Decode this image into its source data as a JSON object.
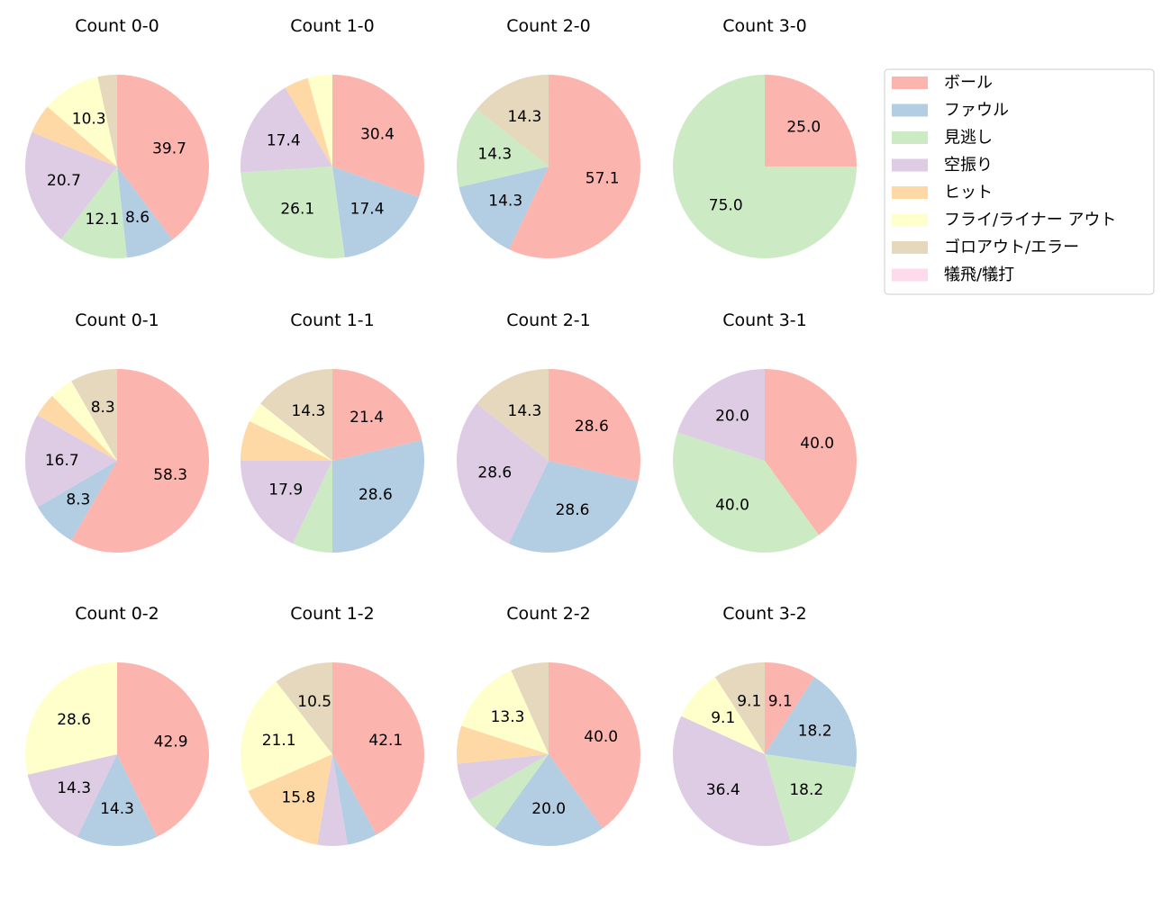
{
  "chart_data": {
    "type": "pie",
    "categories": [
      "ボール",
      "ファウル",
      "見逃し",
      "空振り",
      "ヒット",
      "フライ/ライナー アウト",
      "ゴロアウト/エラー",
      "犠飛/犠打"
    ],
    "colors": [
      "#fbb4ae",
      "#b3cde3",
      "#ccebc5",
      "#decbe4",
      "#fed9a6",
      "#ffffcc",
      "#e5d8bd",
      "#fddaec"
    ],
    "legend_position": "right",
    "start": "top, clockwise",
    "pies": [
      {
        "title": "Count 0-0",
        "values": [
          39.7,
          8.6,
          12.1,
          20.7,
          5.2,
          10.3,
          3.4,
          0
        ]
      },
      {
        "title": "Count 1-0",
        "values": [
          30.4,
          17.4,
          26.1,
          17.4,
          4.3,
          4.3,
          0,
          0
        ]
      },
      {
        "title": "Count 2-0",
        "values": [
          57.1,
          14.3,
          14.3,
          0,
          0,
          0,
          14.3,
          0
        ]
      },
      {
        "title": "Count 3-0",
        "values": [
          25.0,
          0,
          75.0,
          0,
          0,
          0,
          0,
          0
        ]
      },
      {
        "title": "Count 0-1",
        "values": [
          58.3,
          8.3,
          0,
          16.7,
          4.2,
          4.2,
          8.3,
          0
        ]
      },
      {
        "title": "Count 1-1",
        "values": [
          21.4,
          28.6,
          7.1,
          17.9,
          7.1,
          3.6,
          14.3,
          0
        ]
      },
      {
        "title": "Count 2-1",
        "values": [
          28.6,
          28.6,
          0,
          28.6,
          0,
          0,
          14.3,
          0
        ]
      },
      {
        "title": "Count 3-1",
        "values": [
          40.0,
          0,
          40.0,
          20.0,
          0,
          0,
          0,
          0
        ]
      },
      {
        "title": "Count 0-2",
        "values": [
          42.9,
          14.3,
          0,
          14.3,
          0,
          28.6,
          0,
          0
        ]
      },
      {
        "title": "Count 1-2",
        "values": [
          42.1,
          5.3,
          0,
          5.3,
          15.8,
          21.1,
          10.5,
          0
        ]
      },
      {
        "title": "Count 2-2",
        "values": [
          40.0,
          20.0,
          6.7,
          6.7,
          6.7,
          13.3,
          6.7,
          0
        ]
      },
      {
        "title": "Count 3-2",
        "values": [
          9.1,
          18.2,
          18.2,
          36.4,
          0,
          9.1,
          9.1,
          0
        ]
      }
    ]
  }
}
